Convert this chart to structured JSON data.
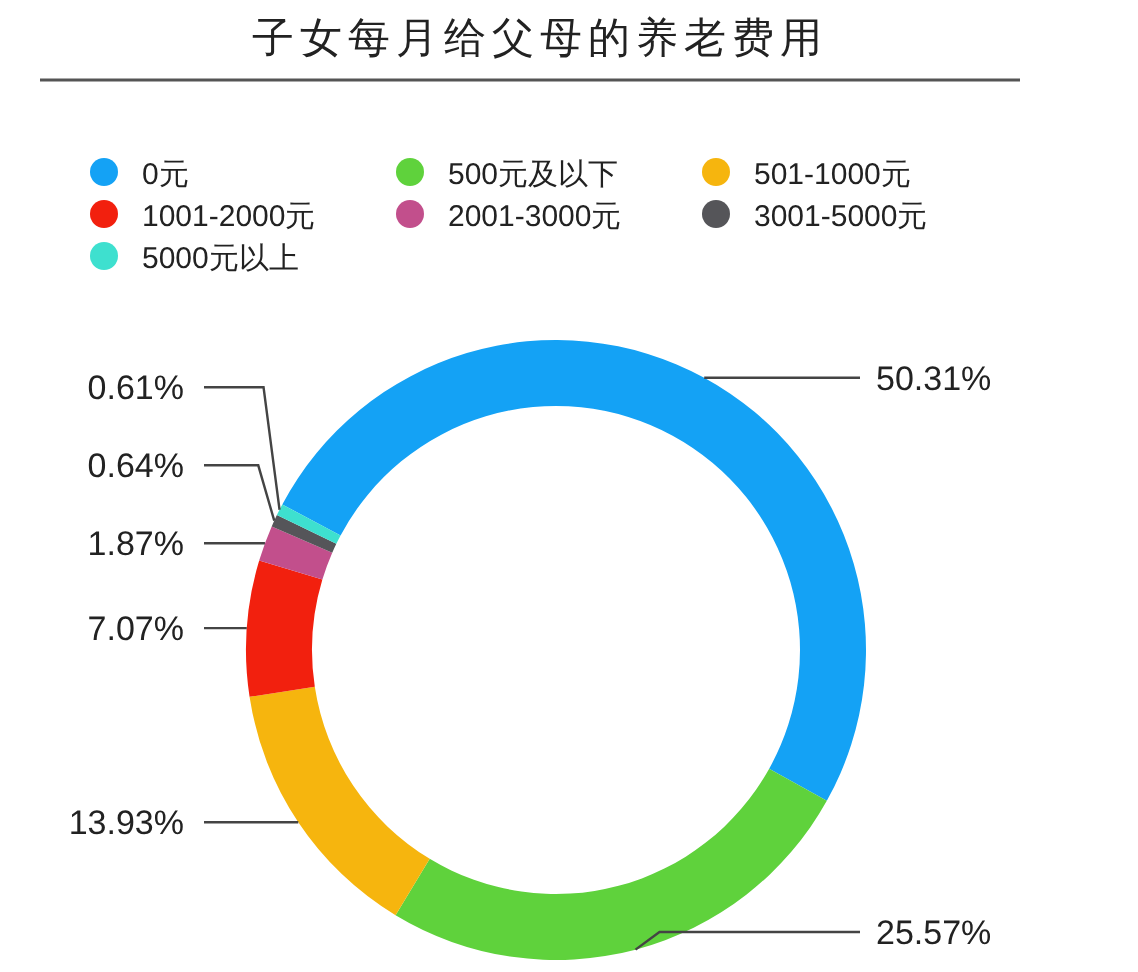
{
  "chart_data": {
    "type": "donut",
    "title": "子女每月给父母的养老费用",
    "categories": [
      "0元",
      "500元及以下",
      "501-1000元",
      "1001-2000元",
      "2001-3000元",
      "3001-5000元",
      "5000元以上"
    ],
    "values": [
      50.31,
      25.57,
      13.93,
      7.07,
      1.87,
      0.64,
      0.61
    ],
    "colors": [
      "#14a2f5",
      "#5fd23c",
      "#f6b50e",
      "#f2200e",
      "#c24f8c",
      "#555559",
      "#3ee0cf"
    ],
    "value_labels": [
      "50.31%",
      "25.57%",
      "13.93%",
      "7.07%",
      "1.87%",
      "0.64%",
      "0.61%"
    ],
    "legend": "top"
  }
}
